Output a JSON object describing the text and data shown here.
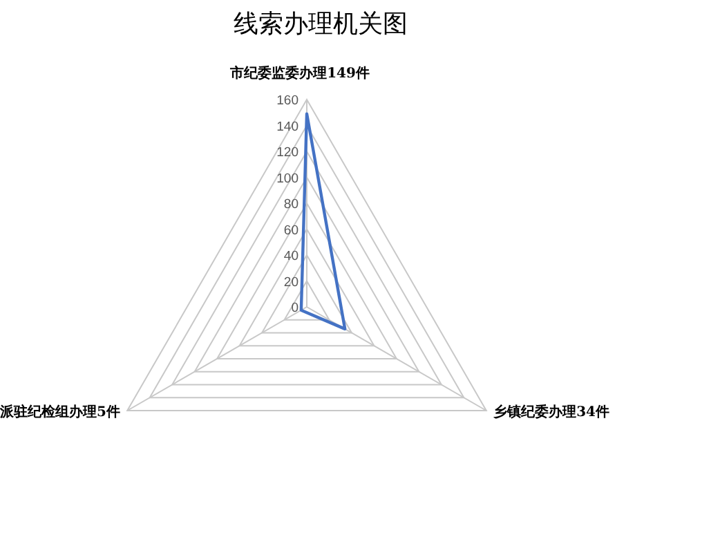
{
  "chart_data": {
    "type": "radar",
    "title": "线索办理机关图",
    "categories": [
      "市纪委监委办理149件",
      "乡镇纪委办理34件",
      "派驻纪检组办理5件"
    ],
    "series": [
      {
        "color": "#4472c4",
        "values": [
          149,
          34,
          5
        ]
      }
    ],
    "ylim": [
      0,
      160
    ],
    "yticks": [
      0,
      20,
      40,
      60,
      80,
      100,
      120,
      140,
      160
    ],
    "grid": true
  }
}
